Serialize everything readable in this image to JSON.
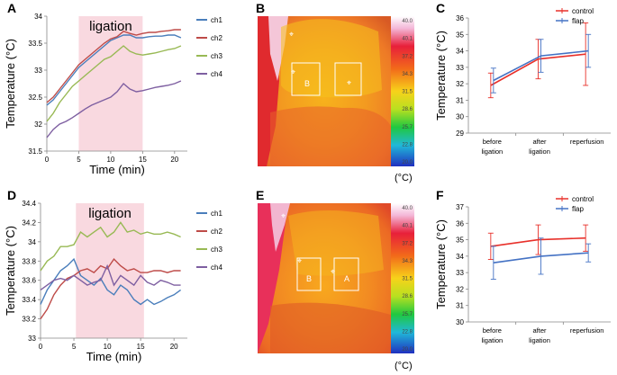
{
  "colors": {
    "ch1": "#4a7ebb",
    "ch2": "#be4b48",
    "ch3": "#98b954",
    "ch4": "#7e5fa1",
    "control": "#e8302a",
    "flap": "#4472c4",
    "shade": "#f9d9e0"
  },
  "panel_letters": {
    "a": "A",
    "b": "B",
    "c": "C",
    "d": "D",
    "e": "E",
    "f": "F"
  },
  "thermal": {
    "unit": "(°C)",
    "top": {
      "scale": [
        "40.0",
        "40.1",
        "37.2",
        "34.3",
        "31.5",
        "28.6",
        "25.7",
        "22.8",
        "20.0"
      ],
      "roi_left": "B",
      "roi_right": ""
    },
    "bottom": {
      "scale": [
        "40.0",
        "40.1",
        "37.2",
        "34.3",
        "31.5",
        "28.6",
        "25.7",
        "22.8",
        "20.0"
      ],
      "roi_left": "B",
      "roi_right": "A"
    }
  },
  "chart_data": [
    {
      "id": "A",
      "type": "line",
      "shade_label": "ligation",
      "shade_range": [
        5,
        15
      ],
      "xlabel": "Time (min)",
      "ylabel": "Temperature (°C)",
      "xlim": [
        0,
        22
      ],
      "ylim": [
        31.5,
        34
      ],
      "xticks": [
        "0",
        "5",
        "10",
        "15",
        "20"
      ],
      "yticks": [
        "31.5",
        "32",
        "32.5",
        "33",
        "33.5",
        "34"
      ],
      "x": [
        0,
        1,
        2,
        3,
        4,
        5,
        6,
        7,
        8,
        9,
        10,
        11,
        12,
        13,
        14,
        15,
        16,
        17,
        18,
        19,
        20,
        21
      ],
      "series": [
        {
          "name": "ch1",
          "values": [
            32.35,
            32.45,
            32.6,
            32.75,
            32.9,
            33.05,
            33.15,
            33.25,
            33.35,
            33.45,
            33.55,
            33.6,
            33.65,
            33.65,
            33.6,
            33.6,
            33.62,
            33.63,
            33.63,
            33.65,
            33.65,
            33.6
          ]
        },
        {
          "name": "ch2",
          "values": [
            32.4,
            32.5,
            32.65,
            32.8,
            32.95,
            33.1,
            33.2,
            33.3,
            33.4,
            33.5,
            33.58,
            33.62,
            33.72,
            33.68,
            33.65,
            33.68,
            33.7,
            33.7,
            33.72,
            33.73,
            33.75,
            33.75
          ]
        },
        {
          "name": "ch3",
          "values": [
            32.05,
            32.2,
            32.4,
            32.55,
            32.7,
            32.8,
            32.9,
            33.0,
            33.1,
            33.2,
            33.25,
            33.35,
            33.45,
            33.35,
            33.3,
            33.28,
            33.3,
            33.32,
            33.35,
            33.38,
            33.4,
            33.45
          ]
        },
        {
          "name": "ch4",
          "values": [
            31.75,
            31.9,
            32.0,
            32.05,
            32.12,
            32.2,
            32.28,
            32.35,
            32.4,
            32.45,
            32.5,
            32.6,
            32.75,
            32.65,
            32.6,
            32.62,
            32.65,
            32.68,
            32.7,
            32.72,
            32.75,
            32.8
          ]
        }
      ]
    },
    {
      "id": "C",
      "type": "line-errorbar",
      "ylabel": "Temperature (°C)",
      "ylim": [
        29,
        36
      ],
      "yticks": [
        "29",
        "30",
        "31",
        "32",
        "33",
        "34",
        "35",
        "36"
      ],
      "categories": [
        "before ligation",
        "after ligation",
        "reperfusion"
      ],
      "series": [
        {
          "name": "control",
          "values": [
            31.9,
            33.5,
            33.8
          ],
          "err": [
            0.75,
            1.2,
            1.9
          ]
        },
        {
          "name": "flap",
          "values": [
            32.2,
            33.7,
            34.0
          ],
          "err": [
            0.75,
            1.0,
            1.0
          ]
        }
      ]
    },
    {
      "id": "D",
      "type": "line",
      "shade_label": "ligation",
      "shade_range": [
        5.3,
        15.5
      ],
      "xlabel": "Time (min)",
      "ylabel": "Temperature (°C)",
      "xlim": [
        0,
        22
      ],
      "ylim": [
        33,
        34.4
      ],
      "xticks": [
        "0",
        "5",
        "10",
        "15",
        "20"
      ],
      "yticks": [
        "33",
        "33.2",
        "33.4",
        "33.6",
        "33.8",
        "34",
        "34.2",
        "34.4"
      ],
      "x": [
        0,
        1,
        2,
        3,
        4,
        5,
        6,
        7,
        8,
        9,
        10,
        11,
        12,
        13,
        14,
        15,
        16,
        17,
        18,
        19,
        20,
        21
      ],
      "series": [
        {
          "name": "ch1",
          "values": [
            33.35,
            33.5,
            33.6,
            33.7,
            33.75,
            33.82,
            33.65,
            33.6,
            33.55,
            33.62,
            33.5,
            33.45,
            33.55,
            33.5,
            33.4,
            33.35,
            33.4,
            33.35,
            33.38,
            33.42,
            33.45,
            33.5
          ]
        },
        {
          "name": "ch2",
          "values": [
            33.2,
            33.3,
            33.45,
            33.55,
            33.62,
            33.65,
            33.7,
            33.72,
            33.68,
            33.75,
            33.72,
            33.82,
            33.75,
            33.7,
            33.72,
            33.68,
            33.68,
            33.7,
            33.7,
            33.68,
            33.7,
            33.7
          ]
        },
        {
          "name": "ch3",
          "values": [
            33.7,
            33.8,
            33.85,
            33.95,
            33.95,
            33.97,
            34.1,
            34.05,
            34.1,
            34.15,
            34.05,
            34.1,
            34.2,
            34.1,
            34.12,
            34.08,
            34.1,
            34.08,
            34.08,
            34.1,
            34.08,
            34.05
          ]
        },
        {
          "name": "ch4",
          "values": [
            33.5,
            33.55,
            33.6,
            33.62,
            33.6,
            33.65,
            33.6,
            33.55,
            33.58,
            33.6,
            33.75,
            33.55,
            33.65,
            33.6,
            33.55,
            33.65,
            33.58,
            33.55,
            33.6,
            33.58,
            33.55,
            33.55
          ]
        }
      ]
    },
    {
      "id": "F",
      "type": "line-errorbar",
      "ylabel": "Temperature (°C)",
      "ylim": [
        30,
        37
      ],
      "yticks": [
        "30",
        "31",
        "32",
        "33",
        "34",
        "35",
        "36",
        "37"
      ],
      "categories": [
        "before ligation",
        "after ligation",
        "reperfusion"
      ],
      "series": [
        {
          "name": "control",
          "values": [
            34.6,
            35.0,
            35.1
          ],
          "err": [
            0.8,
            0.9,
            0.8
          ]
        },
        {
          "name": "flap",
          "values": [
            33.6,
            34.0,
            34.2
          ],
          "err": [
            1.0,
            1.1,
            0.55
          ]
        }
      ]
    }
  ]
}
